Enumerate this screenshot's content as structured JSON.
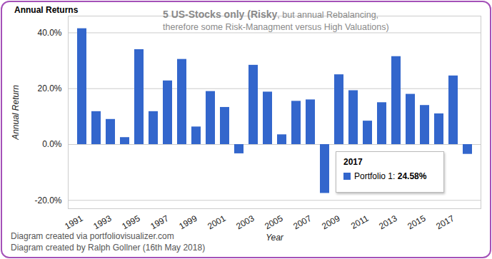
{
  "chart_data": {
    "type": "bar",
    "title": "Annual Returns",
    "subtitle": [
      "5 US-Stocks only (Risky, but annual Rebalancing,",
      "therefore some Risk-Managment versus High Valuations)"
    ],
    "x_label": "Year",
    "y_label": "Annual Return",
    "categories": [
      "1991",
      null,
      "1993",
      null,
      "1995",
      null,
      "1997",
      null,
      "1999",
      null,
      "2001",
      null,
      "2003",
      null,
      "2005",
      null,
      "2007",
      null,
      "2009",
      null,
      "2011",
      null,
      "2013",
      null,
      "2015",
      null,
      "2017",
      null
    ],
    "values": [
      41.5,
      11.8,
      9.0,
      2.5,
      34.0,
      11.8,
      22.8,
      30.5,
      6.3,
      19.0,
      13.3,
      -3.3,
      28.4,
      18.8,
      3.5,
      15.5,
      16.0,
      -17.5,
      25.0,
      19.3,
      8.4,
      15.0,
      31.5,
      18.0,
      14.0,
      11.0,
      24.58,
      -3.5
    ],
    "color": "#3366cc",
    "ylim": [
      -23,
      46
    ],
    "yticks": [
      {
        "value": -20,
        "label": "-20.0%"
      },
      {
        "value": 0,
        "label": "0.0%"
      },
      {
        "value": 20,
        "label": "20.0%"
      },
      {
        "value": 40,
        "label": "40.0%"
      }
    ],
    "grid": true,
    "annotation": {
      "title": "2017",
      "text": "Portfolio 1: 24.58%"
    },
    "notes": [
      "Diagram created via portfoliovisualizer.com",
      "Diagram created by Ralph Gollner (16th May 2018)"
    ]
  }
}
